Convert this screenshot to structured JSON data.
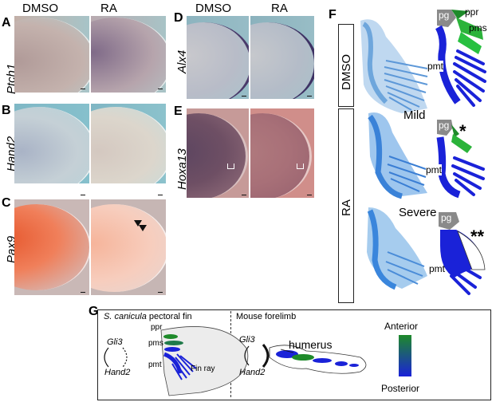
{
  "columns": {
    "dmso": "DMSO",
    "ra": "RA"
  },
  "panels": {
    "A": {
      "letter": "A",
      "gene": "Ptch1"
    },
    "B": {
      "letter": "B",
      "gene": "Hand2"
    },
    "C": {
      "letter": "C",
      "gene": "Pax9"
    },
    "D": {
      "letter": "D",
      "gene": "Alx4"
    },
    "E": {
      "letter": "E",
      "gene": "Hoxa13"
    },
    "F": {
      "letter": "F",
      "row_dmso": "DMSO",
      "row_ra": "RA",
      "mild": "Mild",
      "severe": "Severe",
      "pg": "pg",
      "ppr": "ppr",
      "pms": "pms",
      "pmt": "pmt",
      "star1": "*",
      "star2": "**"
    },
    "G": {
      "letter": "G",
      "left_title_species": "S. canicula",
      "left_title_rest": " pectoral fin",
      "right_title": "Mouse forelimb",
      "gli3": "Gli3",
      "hand2": "Hand2",
      "ppr": "ppr",
      "pms": "pms",
      "pmt": "pmt",
      "fin_ray": "Fin ray",
      "humerus": "humerus",
      "anterior": "Anterior",
      "posterior": "Posterior"
    }
  },
  "colors": {
    "anterior": "#1e8a2a",
    "posterior": "#1a22d8",
    "pg": "#8a8a8a"
  }
}
